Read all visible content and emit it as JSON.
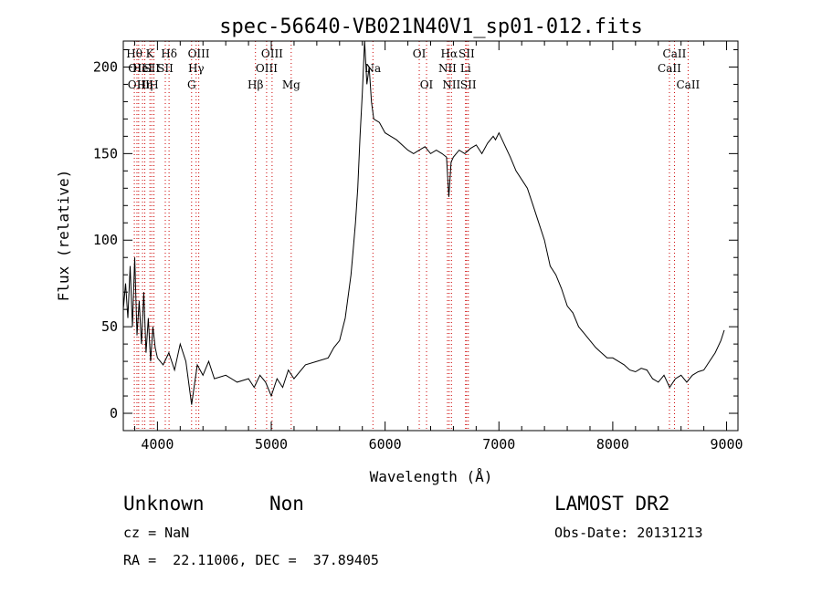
{
  "chart_data": {
    "type": "line",
    "title": "spec-56640-VB021N40V1_sp01-012.fits",
    "xlabel": "Wavelength (Å)",
    "ylabel": "Flux (relative)",
    "xlim": [
      3700,
      9100
    ],
    "ylim": [
      -10,
      215
    ],
    "x_ticks": [
      4000,
      5000,
      6000,
      7000,
      8000,
      9000
    ],
    "x_tick_labels": [
      "4000",
      "5000",
      "6000",
      "7000",
      "8000",
      "9000"
    ],
    "y_ticks": [
      0,
      50,
      100,
      150,
      200
    ],
    "y_tick_labels": [
      "0",
      "50",
      "100",
      "150",
      "200"
    ],
    "grid": false,
    "series": [
      {
        "x": [
          3700,
          3720,
          3740,
          3760,
          3780,
          3800,
          3820,
          3840,
          3860,
          3880,
          3900,
          3920,
          3940,
          3960,
          3980,
          4000,
          4050,
          4100,
          4150,
          4200,
          4250,
          4300,
          4350,
          4400,
          4450,
          4500,
          4600,
          4700,
          4800,
          4850,
          4900,
          4950,
          5000,
          5050,
          5100,
          5150,
          5200,
          5300,
          5400,
          5500,
          5550,
          5600,
          5650,
          5700,
          5720,
          5740,
          5760,
          5780,
          5800,
          5820,
          5840,
          5860,
          5880,
          5900,
          5950,
          6000,
          6050,
          6100,
          6150,
          6200,
          6250,
          6300,
          6350,
          6400,
          6450,
          6500,
          6540,
          6560,
          6580,
          6600,
          6650,
          6700,
          6750,
          6800,
          6850,
          6900,
          6950,
          6970,
          7000,
          7050,
          7100,
          7150,
          7200,
          7250,
          7300,
          7350,
          7400,
          7450,
          7500,
          7550,
          7600,
          7650,
          7700,
          7750,
          7800,
          7850,
          7900,
          7950,
          8000,
          8050,
          8100,
          8150,
          8200,
          8250,
          8300,
          8350,
          8400,
          8450,
          8500,
          8550,
          8600,
          8650,
          8700,
          8750,
          8800,
          8850,
          8900,
          8950,
          8980
        ],
        "values": [
          60,
          75,
          55,
          85,
          50,
          90,
          45,
          65,
          40,
          70,
          35,
          55,
          30,
          50,
          38,
          32,
          28,
          35,
          25,
          40,
          30,
          5,
          28,
          22,
          30,
          20,
          22,
          18,
          20,
          15,
          22,
          18,
          10,
          20,
          15,
          25,
          20,
          28,
          30,
          32,
          38,
          42,
          55,
          80,
          95,
          110,
          130,
          160,
          185,
          215,
          190,
          200,
          180,
          170,
          168,
          162,
          160,
          158,
          155,
          152,
          150,
          152,
          154,
          150,
          152,
          150,
          148,
          125,
          145,
          148,
          152,
          150,
          153,
          155,
          150,
          156,
          160,
          158,
          162,
          155,
          148,
          140,
          135,
          130,
          120,
          110,
          100,
          85,
          80,
          72,
          62,
          58,
          50,
          46,
          42,
          38,
          35,
          32,
          32,
          30,
          28,
          25,
          24,
          26,
          25,
          20,
          18,
          22,
          15,
          20,
          22,
          18,
          22,
          24,
          25,
          30,
          35,
          42,
          48
        ]
      }
    ],
    "line_markers": [
      {
        "x": 3797,
        "label": "Hθ",
        "row": 1
      },
      {
        "x": 3820,
        "label": "OII",
        "row": 2
      },
      {
        "x": 3835,
        "label": "OIII",
        "row": 3
      },
      {
        "x": 3869,
        "label": "HeI",
        "row": 2
      },
      {
        "x": 3889,
        "label": "Hη",
        "row": 3
      },
      {
        "x": 3934,
        "label": "K",
        "row": 1
      },
      {
        "x": 3950,
        "label": "SII",
        "row": 2
      },
      {
        "x": 3969,
        "label": "H",
        "row": 3
      },
      {
        "x": 4069,
        "label": "SII",
        "row": 2
      },
      {
        "x": 4102,
        "label": "Hδ",
        "row": 1
      },
      {
        "x": 4300,
        "label": "G",
        "row": 3
      },
      {
        "x": 4340,
        "label": "Hγ",
        "row": 2
      },
      {
        "x": 4363,
        "label": "OIII",
        "row": 1
      },
      {
        "x": 4861,
        "label": "Hβ",
        "row": 3
      },
      {
        "x": 4959,
        "label": "OIII",
        "row": 2
      },
      {
        "x": 5007,
        "label": "OIII",
        "row": 1
      },
      {
        "x": 5175,
        "label": "Mg",
        "row": 3
      },
      {
        "x": 5893,
        "label": "Na",
        "row": 2
      },
      {
        "x": 6300,
        "label": "OI",
        "row": 1
      },
      {
        "x": 6364,
        "label": "OI",
        "row": 3
      },
      {
        "x": 6548,
        "label": "NII",
        "row": 2
      },
      {
        "x": 6563,
        "label": "Hα",
        "row": 1
      },
      {
        "x": 6583,
        "label": "NII",
        "row": 3
      },
      {
        "x": 6707,
        "label": "Li",
        "row": 2
      },
      {
        "x": 6716,
        "label": "SII",
        "row": 1
      },
      {
        "x": 6731,
        "label": "SII",
        "row": 3
      },
      {
        "x": 8498,
        "label": "CaII",
        "row": 2
      },
      {
        "x": 8542,
        "label": "CaII",
        "row": 1
      },
      {
        "x": 8662,
        "label": "CaII",
        "row": 3
      }
    ]
  },
  "info": {
    "class": "Unknown",
    "subclass": "Non",
    "survey": "LAMOST DR2",
    "cz": "cz = NaN",
    "obs_date": "Obs-Date: 20131213",
    "coords": "RA =  22.11006, DEC =  37.89405"
  }
}
